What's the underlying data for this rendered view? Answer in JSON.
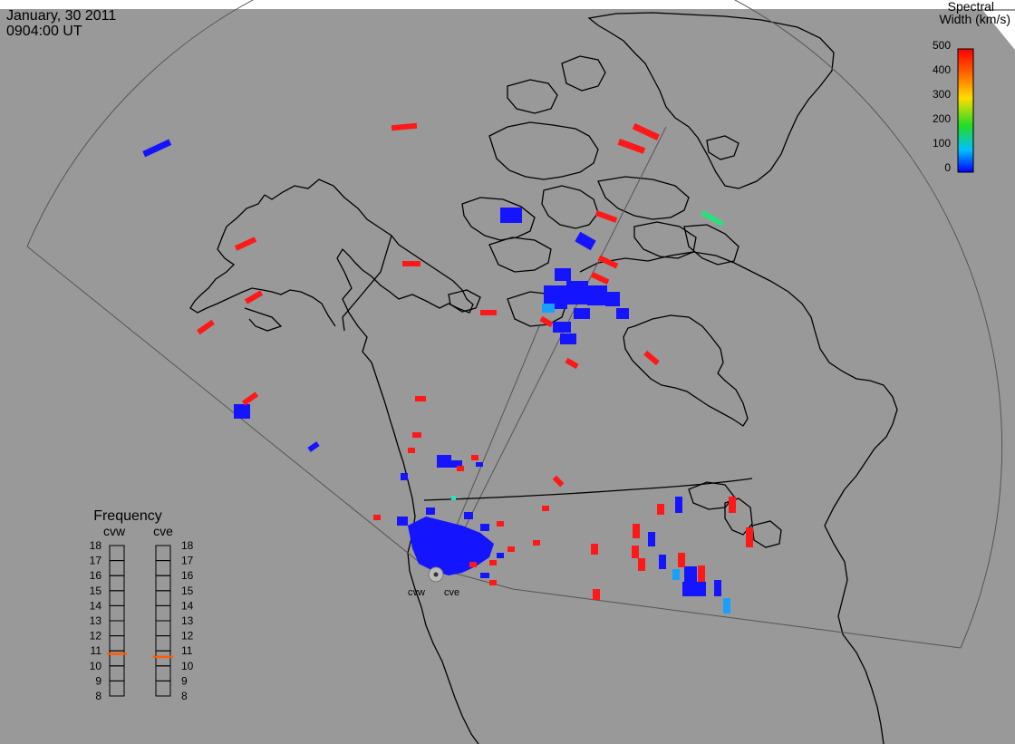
{
  "header": {
    "date": "January, 30 2011",
    "time": "0904:00 UT"
  },
  "colorbar": {
    "title_line1": "Spectral",
    "title_line2": "Width (km/s)",
    "ticks": [
      "500",
      "400",
      "300",
      "200",
      "100",
      "0"
    ]
  },
  "frequency": {
    "title": "Frequency",
    "radars": [
      {
        "name": "cvw",
        "value": 10.8
      },
      {
        "name": "cve",
        "value": 10.6
      }
    ],
    "scale": [
      "18",
      "17",
      "16",
      "15",
      "14",
      "13",
      "12",
      "11",
      "10",
      "9",
      "8"
    ],
    "marker_color": "#ff5a00"
  },
  "site_labels": [
    "cvw",
    "cve"
  ],
  "colors": {
    "background": "#999999",
    "land": "#9a9a9a",
    "ocean_corner": "#ffffff",
    "low_width": "#1414ff",
    "mid_width": "#18a0ff",
    "green_width": "#29e07a",
    "high_width": "#ff1818"
  }
}
